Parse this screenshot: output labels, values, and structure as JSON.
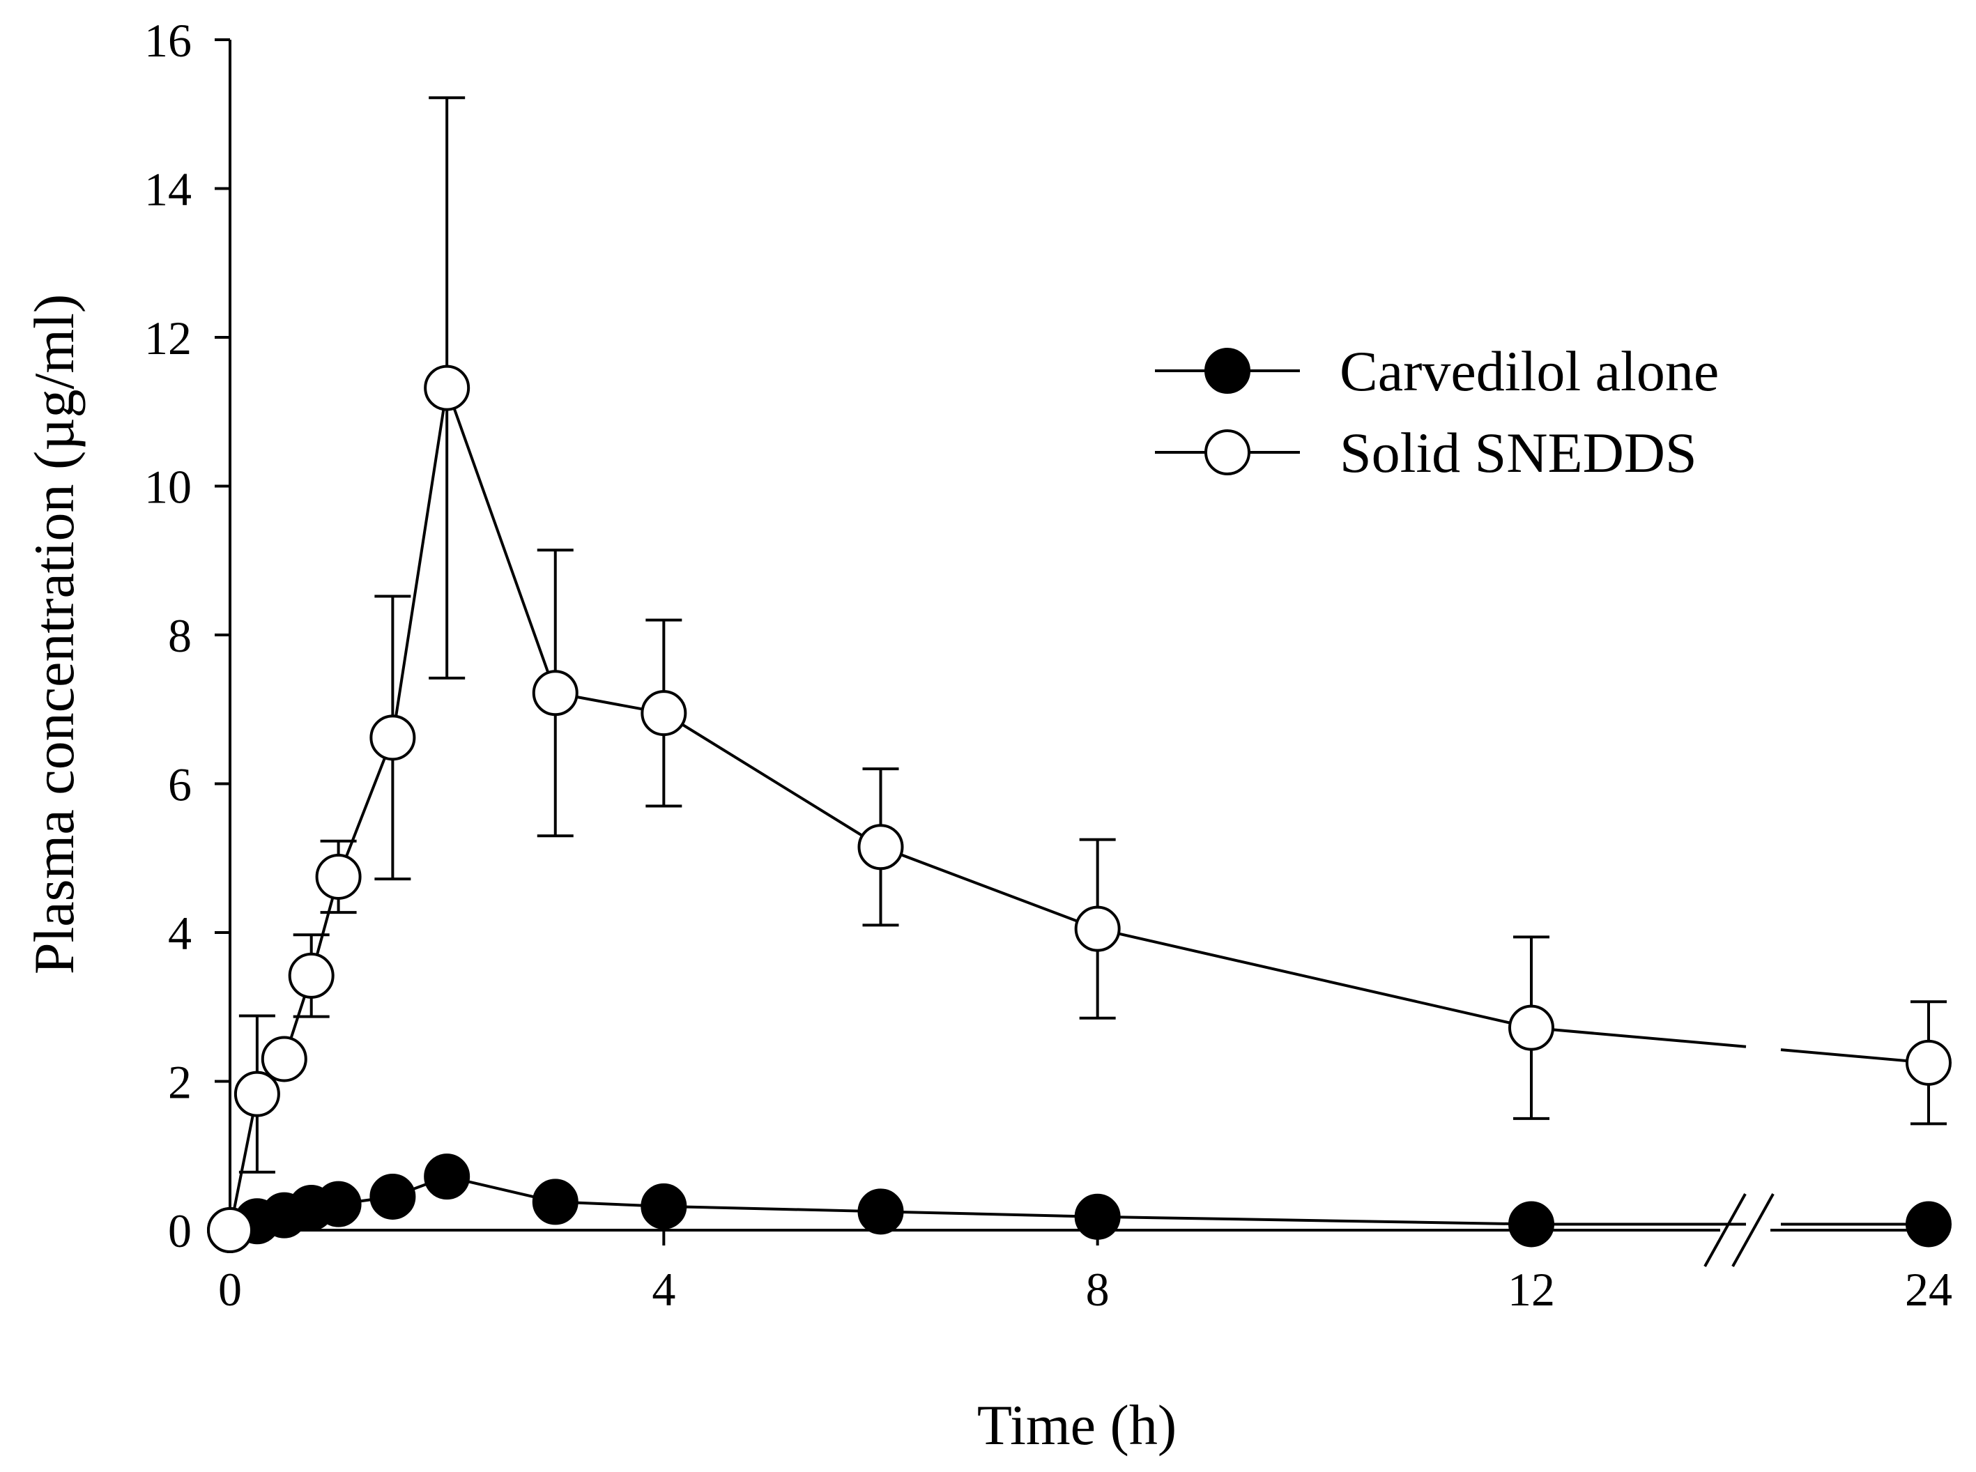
{
  "chart_data": {
    "type": "line",
    "xlabel": "Time (h)",
    "ylabel": "Plasma concentration (µg/ml)",
    "xlim": [
      0,
      24
    ],
    "ylim": [
      0,
      16
    ],
    "x_ticks": [
      0,
      4,
      8,
      12,
      24
    ],
    "x_tick_labels": [
      "0",
      "4",
      "8",
      "12",
      "24"
    ],
    "y_ticks": [
      0,
      2,
      4,
      6,
      8,
      10,
      12,
      14,
      16
    ],
    "y_tick_labels": [
      "0",
      "2",
      "4",
      "6",
      "8",
      "10",
      "12",
      "14",
      "16"
    ],
    "x_axis_break": "between 12 and 24",
    "legend_position": "top-right",
    "series": [
      {
        "name": "Carvedilol alone",
        "marker": "filled-circle",
        "x": [
          0,
          0.25,
          0.5,
          0.75,
          1,
          1.5,
          2,
          3,
          4,
          6,
          8,
          12,
          24
        ],
        "y": [
          0,
          0.12,
          0.2,
          0.3,
          0.35,
          0.45,
          0.72,
          0.38,
          0.32,
          0.25,
          0.18,
          0.08,
          0.08
        ]
      },
      {
        "name": "Solid SNEDDS",
        "marker": "open-circle",
        "x": [
          0,
          0.25,
          0.5,
          0.75,
          1,
          1.5,
          2,
          3,
          4,
          6,
          8,
          12,
          24
        ],
        "y": [
          0,
          1.83,
          2.3,
          3.42,
          4.75,
          6.62,
          11.32,
          7.22,
          6.95,
          5.15,
          4.05,
          2.72,
          2.25
        ],
        "err": [
          0,
          1.05,
          0,
          0.55,
          0.48,
          1.9,
          3.9,
          1.92,
          1.25,
          1.05,
          1.2,
          1.22,
          0.82
        ]
      }
    ]
  }
}
